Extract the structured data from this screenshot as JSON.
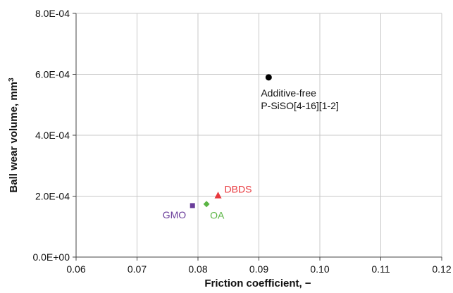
{
  "chart_data": {
    "type": "scatter",
    "title": "",
    "xlabel": "Friction coefficient, −",
    "ylabel": "Ball wear volume, mm",
    "ylabel_superscript": "3",
    "xlim": [
      0.06,
      0.12
    ],
    "ylim": [
      0,
      0.0008
    ],
    "x_ticks": [
      "0.06",
      "0.07",
      "0.08",
      "0.09",
      "0.10",
      "0.11",
      "0.12"
    ],
    "x_tick_values": [
      0.06,
      0.07,
      0.08,
      0.09,
      0.1,
      0.11,
      0.12
    ],
    "y_ticks": [
      "0.0E+00",
      "2.0E-04",
      "4.0E-04",
      "6.0E-04",
      "8.0E-04"
    ],
    "y_tick_values": [
      0,
      0.0002,
      0.0004,
      0.0006,
      0.0008
    ],
    "grid": true,
    "legend": "none",
    "points": [
      {
        "label_lines": [
          "Additive-free",
          "P-SiSO[4-16][1-2]"
        ],
        "x": 0.0916,
        "y": 0.00059,
        "marker": "circle",
        "color": "#000000",
        "label_color": "#111111"
      },
      {
        "label_lines": [
          "DBDS"
        ],
        "x": 0.0833,
        "y": 0.000202,
        "marker": "triangle",
        "color": "#e8383d",
        "label_color": "#e8383d"
      },
      {
        "label_lines": [
          "OA"
        ],
        "x": 0.0814,
        "y": 0.000174,
        "marker": "diamond",
        "color": "#5bb544",
        "label_color": "#5bb544"
      },
      {
        "label_lines": [
          "GMO"
        ],
        "x": 0.0791,
        "y": 0.000169,
        "marker": "square",
        "color": "#6a3d9a",
        "label_color": "#6a3d9a"
      }
    ]
  }
}
